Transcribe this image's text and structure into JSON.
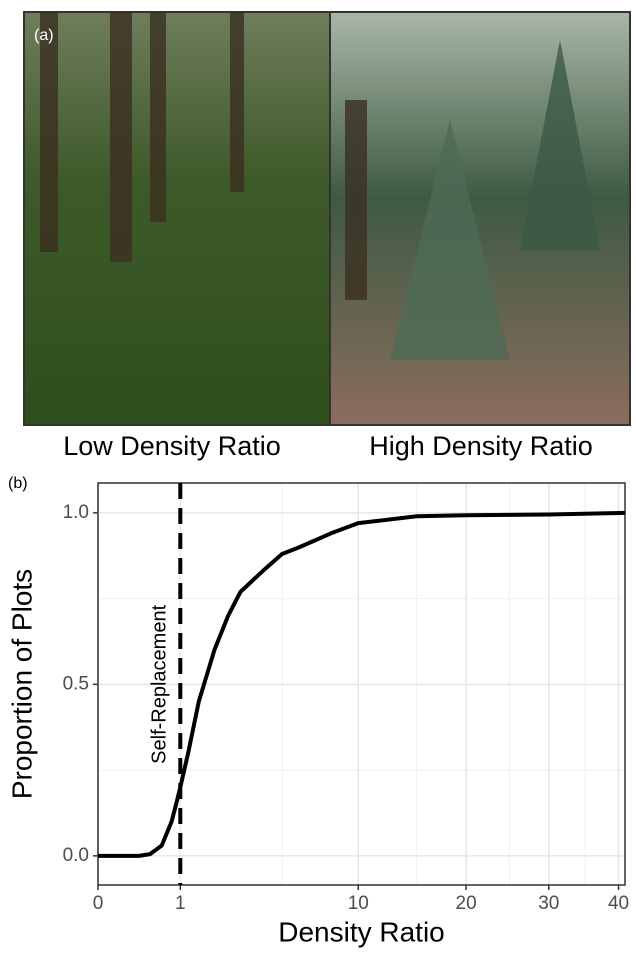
{
  "figure": {
    "panel_a_label": "(a)",
    "photo_labels": [
      "Low Density Ratio",
      "High Density Ratio"
    ],
    "panel_b_label": "(b)"
  },
  "chart_data": {
    "type": "line",
    "xlabel": "Density Ratio",
    "ylabel": "Proportion of Plots",
    "x": [
      0,
      0.25,
      0.4,
      0.6,
      0.8,
      0.9,
      1,
      1.2,
      1.5,
      2,
      2.5,
      3,
      4,
      5,
      6,
      8,
      10,
      15,
      20,
      30,
      41
    ],
    "values": [
      0,
      0,
      0.005,
      0.03,
      0.1,
      0.15,
      0.2,
      0.3,
      0.45,
      0.6,
      0.7,
      0.77,
      0.83,
      0.88,
      0.9,
      0.94,
      0.97,
      0.99,
      0.993,
      0.995,
      1.0
    ],
    "color": "#000000",
    "xscale": "sqrt",
    "xlim": [
      0,
      41
    ],
    "ylim": [
      -0.085,
      1.087
    ],
    "xticks": [
      0,
      1,
      10,
      20,
      30,
      40
    ],
    "x_minor_ticks": [
      5,
      15,
      25,
      35
    ],
    "yticks": [
      {
        "value": 0,
        "label": "0.0"
      },
      {
        "value": 0.5,
        "label": "0.5"
      },
      {
        "value": 1,
        "label": "1.0"
      }
    ],
    "y_minor_ticks": [
      0.25,
      0.75
    ],
    "grid": true,
    "vline": 1,
    "annotation": "Self-Replacement"
  }
}
